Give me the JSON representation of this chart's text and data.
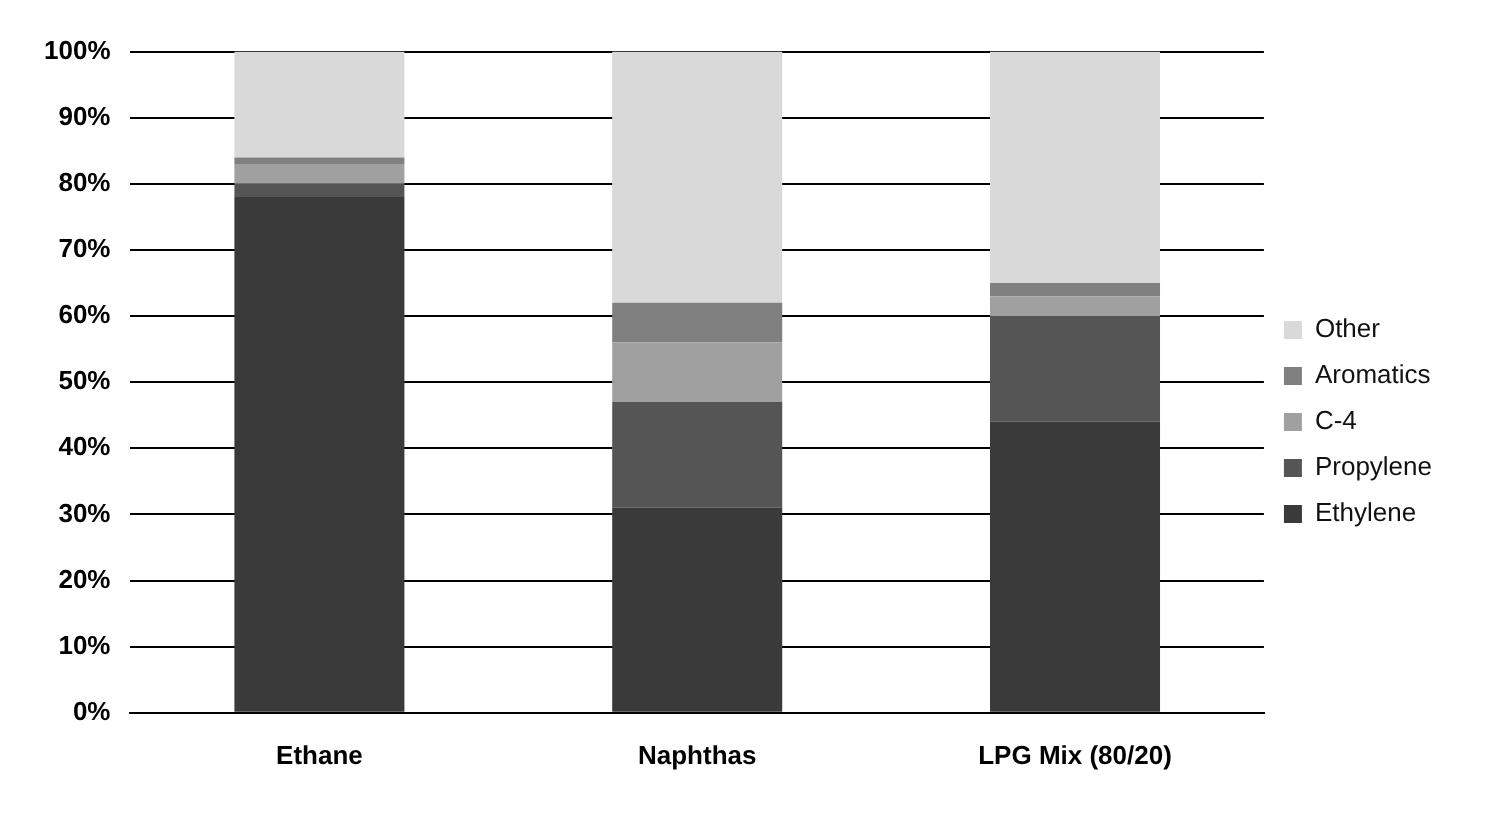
{
  "chart_data": {
    "type": "bar",
    "stacked": true,
    "categories": [
      "Ethane",
      "Naphthas",
      "LPG Mix (80/20)"
    ],
    "series": [
      {
        "name": "Ethylene",
        "color": "#3a3a3a",
        "values": [
          78,
          31,
          44
        ]
      },
      {
        "name": "Propylene",
        "color": "#555555",
        "values": [
          2,
          16,
          16
        ]
      },
      {
        "name": "C-4",
        "color": "#a0a0a0",
        "values": [
          3,
          9,
          3
        ]
      },
      {
        "name": "Aromatics",
        "color": "#808080",
        "values": [
          1,
          6,
          2
        ]
      },
      {
        "name": "Other",
        "color": "#d9d9d9",
        "values": [
          16,
          38,
          35
        ]
      }
    ],
    "ylim": [
      0,
      100
    ],
    "yticks": [
      {
        "value": 0,
        "label": "0%"
      },
      {
        "value": 10,
        "label": "10%"
      },
      {
        "value": 20,
        "label": "20%"
      },
      {
        "value": 30,
        "label": "30%"
      },
      {
        "value": 40,
        "label": "40%"
      },
      {
        "value": 50,
        "label": "50%"
      },
      {
        "value": 60,
        "label": "60%"
      },
      {
        "value": 70,
        "label": "70%"
      },
      {
        "value": 80,
        "label": "80%"
      },
      {
        "value": 90,
        "label": "90%"
      },
      {
        "value": 100,
        "label": "100%"
      }
    ],
    "grid": "y",
    "legend": "right"
  }
}
